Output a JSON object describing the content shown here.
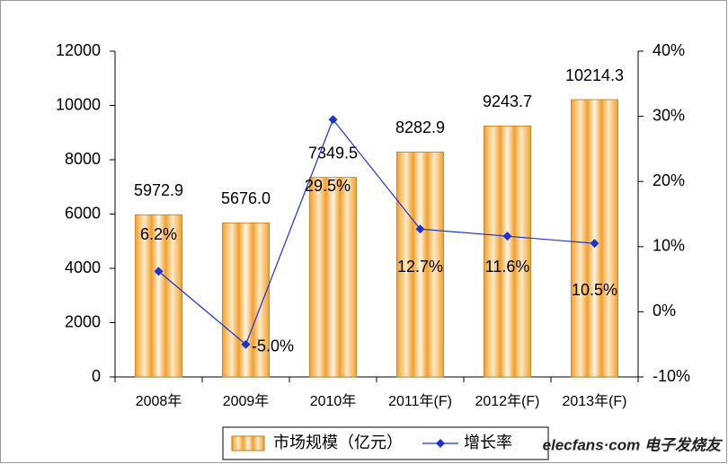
{
  "chart_data": {
    "type": "bar_line",
    "categories": [
      "2008年",
      "2009年",
      "2010年",
      "2011年(F)",
      "2012年(F)",
      "2013年(F)"
    ],
    "series": [
      {
        "name": "市场规模（亿元）",
        "type": "bar",
        "color": "#f0a030",
        "values": [
          5972.9,
          5676.0,
          7349.5,
          8282.9,
          9243.7,
          10214.3
        ],
        "value_labels": [
          "5972.9",
          "5676.0",
          "7349.5",
          "8282.9",
          "9243.7",
          "10214.3"
        ]
      },
      {
        "name": "增长率",
        "type": "line",
        "axis": "y2",
        "color": "#1c34c8",
        "values": [
          6.2,
          -5.0,
          29.5,
          12.7,
          11.6,
          10.5
        ],
        "value_labels": [
          "6.2%",
          "-5.0%",
          "29.5%",
          "12.7%",
          "11.6%",
          "10.5%"
        ]
      }
    ],
    "ylim": [
      0,
      12000
    ],
    "yticks": [
      0,
      2000,
      4000,
      6000,
      8000,
      10000,
      12000
    ],
    "y2lim": [
      -10,
      40
    ],
    "y2ticks": [
      {
        "value": -10,
        "label": "-10%"
      },
      {
        "value": 0,
        "label": "0%"
      },
      {
        "value": 10,
        "label": "10%"
      },
      {
        "value": 20,
        "label": "20%"
      },
      {
        "value": 30,
        "label": "30%"
      },
      {
        "value": 40,
        "label": "40%"
      }
    ],
    "legend": "bottom",
    "watermark": "elecfans·com 电子发烧友"
  }
}
